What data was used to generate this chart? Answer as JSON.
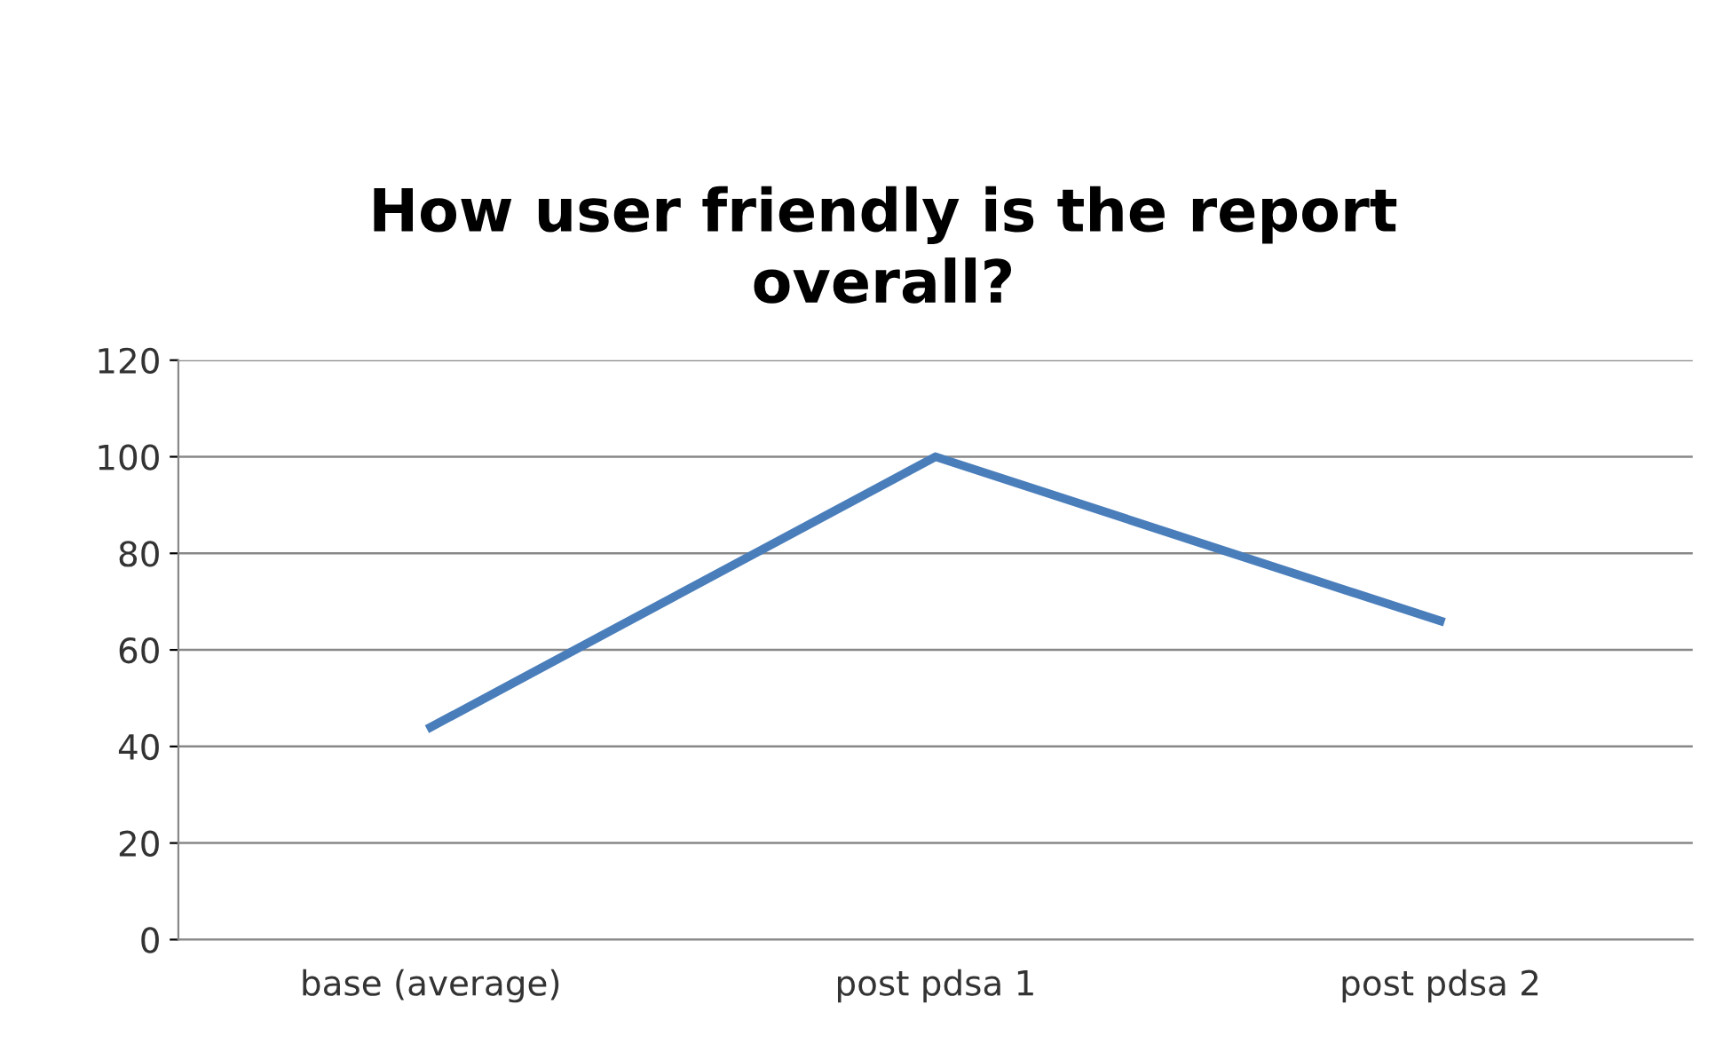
{
  "chart_data": {
    "type": "line",
    "title": "How user friendly is the report\noverall?",
    "categories": [
      "base (average)",
      "post pdsa 1",
      "post pdsa 2"
    ],
    "series": [
      {
        "color": "#4a7ebb",
        "values": [
          44,
          100,
          66
        ]
      }
    ],
    "ylim": [
      0,
      120
    ],
    "yticks": [
      0,
      20,
      40,
      60,
      80,
      100,
      120
    ],
    "grid": "y",
    "legend": false,
    "marker": "none",
    "line_style": "solid"
  }
}
